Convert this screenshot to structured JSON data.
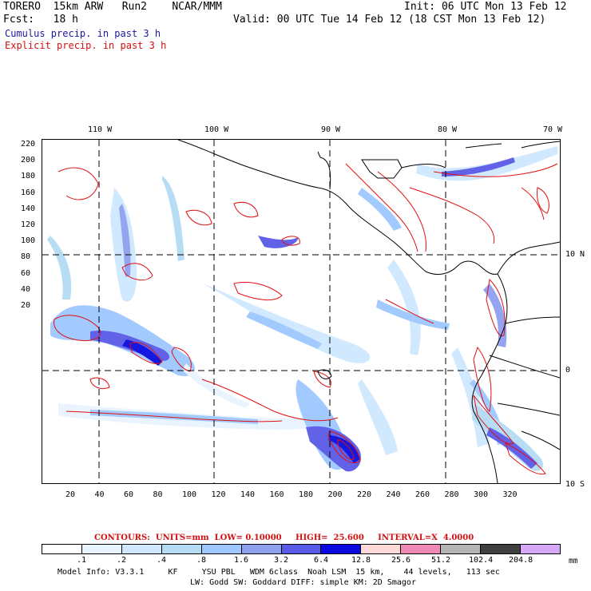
{
  "header": {
    "title": "TORERO  15km ARW   Run2    NCAR/MMM",
    "init": "Init: 06 UTC Mon 13 Feb 12",
    "fcst": "Fcst:   18 h",
    "valid": "Valid: 00 UTC Tue 14 Feb 12 (18 CST Mon 13 Feb 12)",
    "field1": "Cumulus precip. in past 3 h",
    "field2": "Explicit precip. in past 3 h"
  },
  "map": {
    "lon_labels": [
      "110 W",
      "100 W",
      "90 W",
      "80 W",
      "70 W"
    ],
    "lat_labels": [
      "10 N",
      "0",
      "10 S"
    ],
    "y_ticks": [
      "220",
      "200",
      "180",
      "160",
      "140",
      "120",
      "100",
      "80",
      "60",
      "40",
      "20"
    ],
    "x_ticks": [
      "20",
      "40",
      "60",
      "80",
      "100",
      "120",
      "140",
      "160",
      "180",
      "200",
      "220",
      "240",
      "260",
      "280",
      "300",
      "320"
    ]
  },
  "contours": {
    "label": "CONTOURS:  UNITS=mm  LOW= 0.10000     HIGH=  25.600     INTERVAL=X  4.0000"
  },
  "colorbar": {
    "labels": [
      ".1",
      ".2",
      ".4",
      ".8",
      "1.6",
      "3.2",
      "6.4",
      "12.8",
      "25.6",
      "51.2",
      "102.4",
      "204.8"
    ],
    "units": "mm",
    "colors": [
      "#ffffff",
      "#e8f4ff",
      "#cfe8ff",
      "#b4dcf4",
      "#9ec8ff",
      "#8fa0f0",
      "#5a5ae8",
      "#0a0ae0",
      "#ffd8d8",
      "#f08ab4",
      "#b4b4b4",
      "#404040",
      "#d8a8f8"
    ]
  },
  "footer": {
    "line1": "Model Info: V3.3.1     KF     YSU PBL   WDM 6class  Noah LSM  15 km,    44 levels,   113 sec",
    "line2": "LW: Godd SW: Goddard DIFF: simple KM: 2D Smagor"
  }
}
